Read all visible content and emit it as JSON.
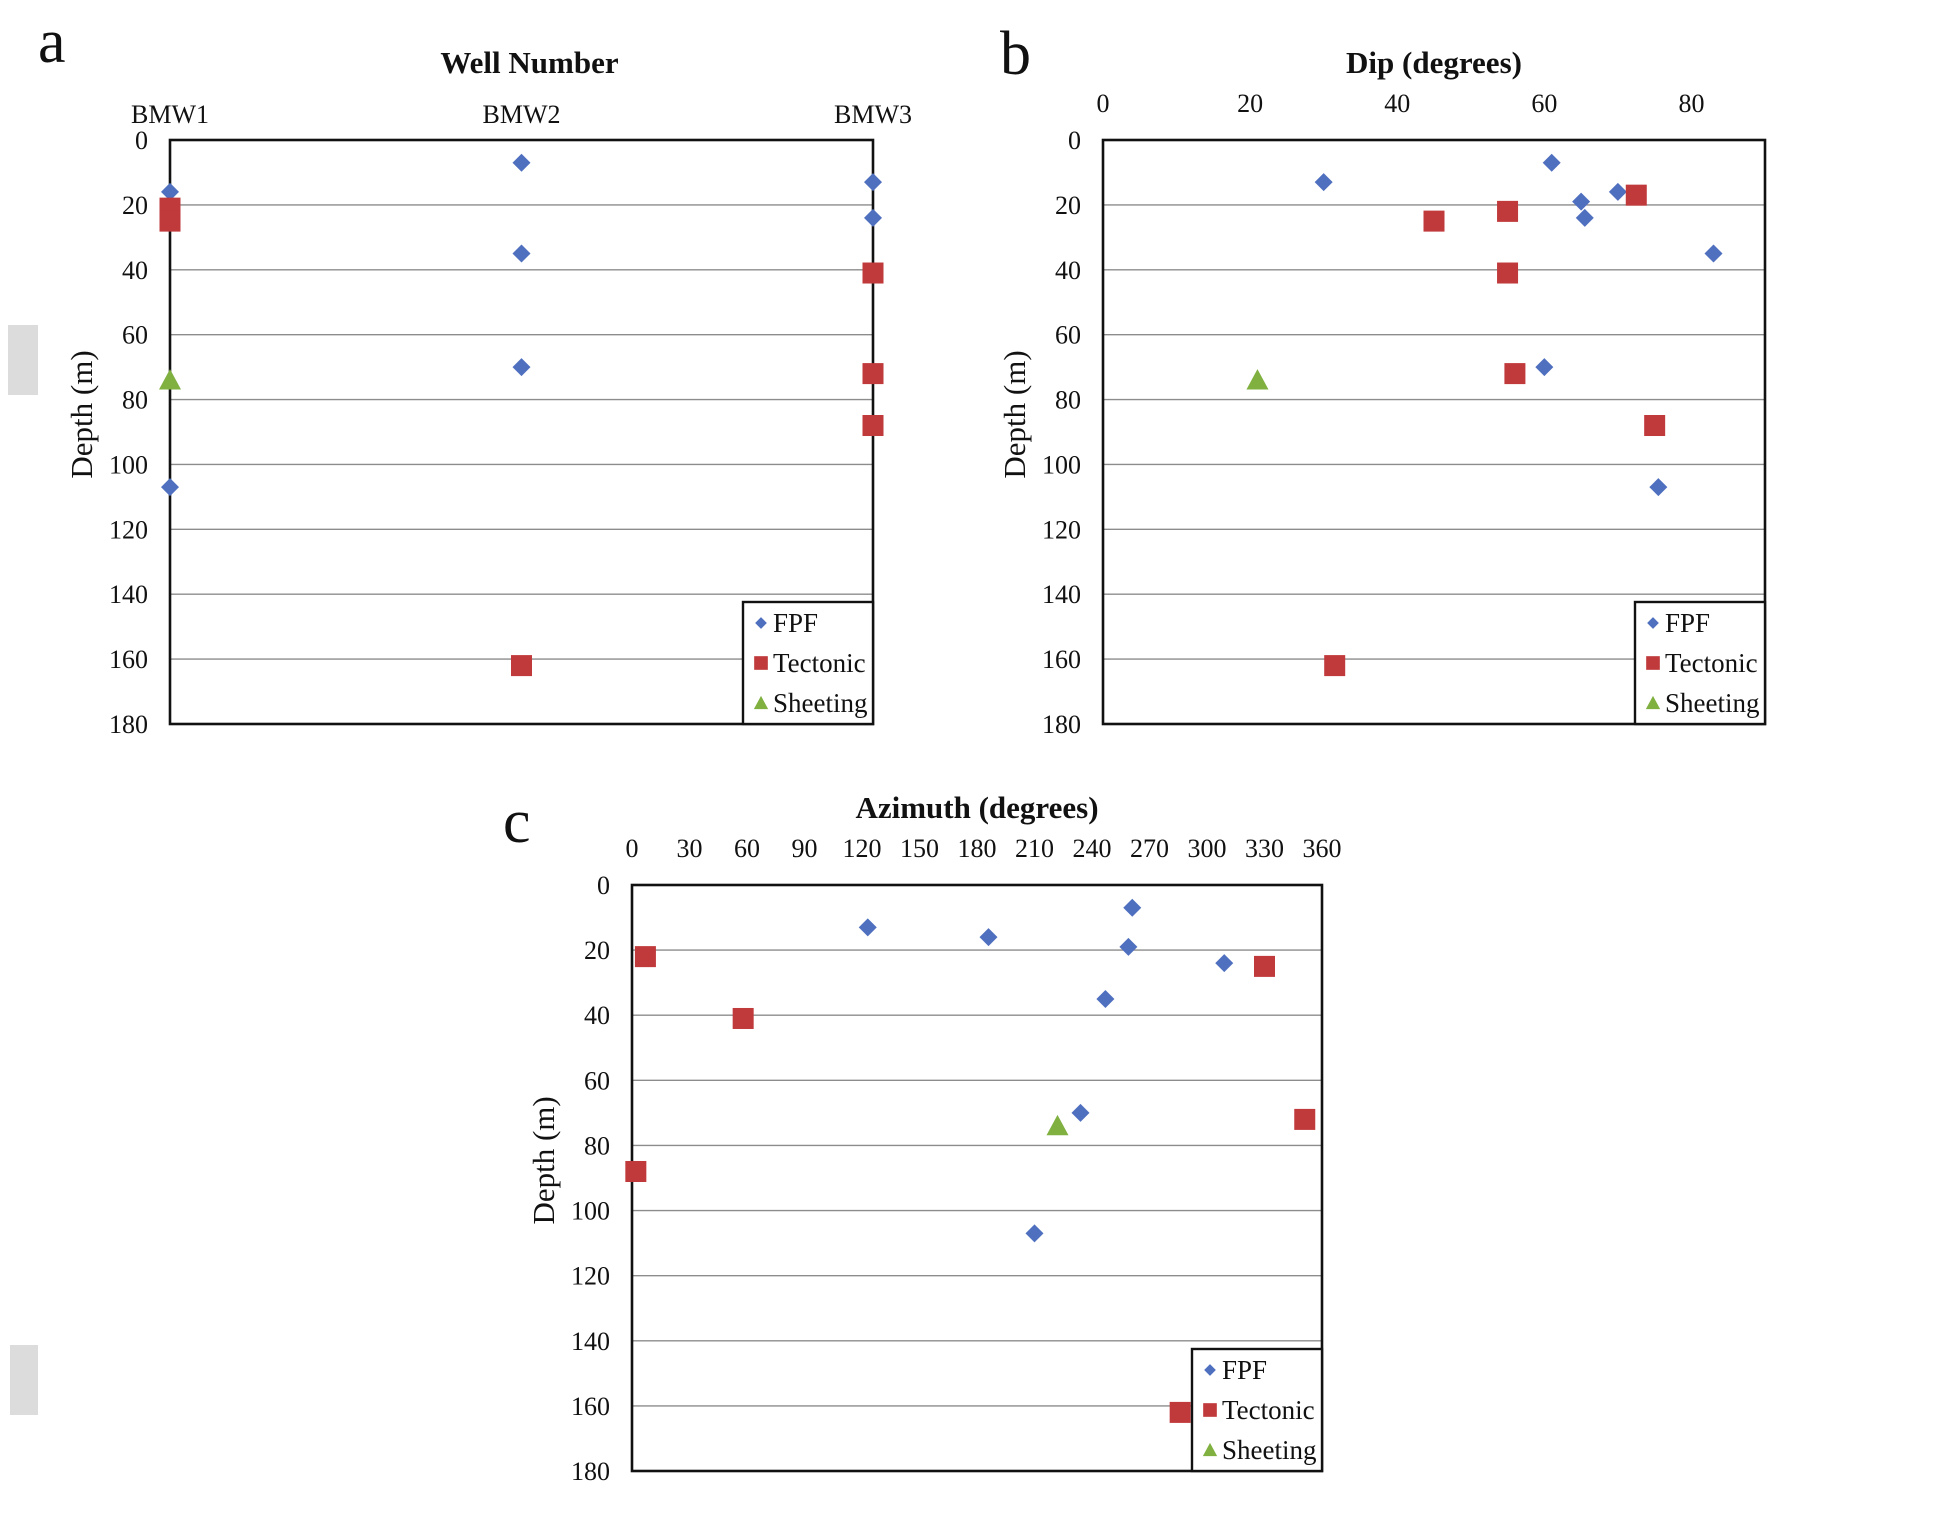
{
  "colors": {
    "FPF": "#4f6fbf",
    "Tectonic": "#c0393b",
    "Sheeting": "#7fb040"
  },
  "chart_data": [
    {
      "panel": "a",
      "type": "scatter",
      "title": "Well Number",
      "xlabel": "",
      "ylabel": "Depth (m)",
      "x_type": "category",
      "categories": [
        "BMW1",
        "BMW2",
        "BMW3"
      ],
      "ylim": [
        0,
        180
      ],
      "y_ticks": [
        0,
        20,
        40,
        60,
        80,
        100,
        120,
        140,
        160,
        180
      ],
      "y_inverted": true,
      "x_axis_position": "top",
      "grid": "horizontal",
      "legend": "bottom-right",
      "series": [
        {
          "name": "FPF",
          "marker": "diamond",
          "points": [
            {
              "x": "BMW1",
              "y": 16
            },
            {
              "x": "BMW1",
              "y": 107
            },
            {
              "x": "BMW2",
              "y": 7
            },
            {
              "x": "BMW2",
              "y": 35
            },
            {
              "x": "BMW2",
              "y": 70
            },
            {
              "x": "BMW3",
              "y": 13
            },
            {
              "x": "BMW3",
              "y": 24
            }
          ]
        },
        {
          "name": "Tectonic",
          "marker": "square",
          "points": [
            {
              "x": "BMW1",
              "y": 21
            },
            {
              "x": "BMW1",
              "y": 25
            },
            {
              "x": "BMW2",
              "y": 162
            },
            {
              "x": "BMW3",
              "y": 41
            },
            {
              "x": "BMW3",
              "y": 72
            },
            {
              "x": "BMW3",
              "y": 88
            }
          ]
        },
        {
          "name": "Sheeting",
          "marker": "triangle",
          "points": [
            {
              "x": "BMW1",
              "y": 74
            }
          ]
        }
      ]
    },
    {
      "panel": "b",
      "type": "scatter",
      "title": "Dip (degrees)",
      "xlabel": "",
      "ylabel": "Depth (m)",
      "xlim": [
        0,
        90
      ],
      "x_ticks": [
        0,
        20,
        40,
        60,
        80
      ],
      "ylim": [
        0,
        180
      ],
      "y_ticks": [
        0,
        20,
        40,
        60,
        80,
        100,
        120,
        140,
        160,
        180
      ],
      "y_inverted": true,
      "x_axis_position": "top",
      "grid": "horizontal",
      "legend": "bottom-right",
      "series": [
        {
          "name": "FPF",
          "marker": "diamond",
          "points": [
            {
              "x": 30,
              "y": 13
            },
            {
              "x": 61,
              "y": 7
            },
            {
              "x": 65,
              "y": 19
            },
            {
              "x": 65.5,
              "y": 24
            },
            {
              "x": 70,
              "y": 16
            },
            {
              "x": 83,
              "y": 35
            },
            {
              "x": 60,
              "y": 70
            },
            {
              "x": 75.5,
              "y": 107
            }
          ]
        },
        {
          "name": "Tectonic",
          "marker": "square",
          "points": [
            {
              "x": 45,
              "y": 25
            },
            {
              "x": 55,
              "y": 22
            },
            {
              "x": 72.5,
              "y": 17
            },
            {
              "x": 55,
              "y": 41
            },
            {
              "x": 56,
              "y": 72
            },
            {
              "x": 75,
              "y": 88
            },
            {
              "x": 31.5,
              "y": 162
            }
          ]
        },
        {
          "name": "Sheeting",
          "marker": "triangle",
          "points": [
            {
              "x": 21,
              "y": 74
            }
          ]
        }
      ]
    },
    {
      "panel": "c",
      "type": "scatter",
      "title": "Azimuth (degrees)",
      "xlabel": "",
      "ylabel": "Depth (m)",
      "xlim": [
        0,
        360
      ],
      "x_ticks": [
        0,
        30,
        60,
        90,
        120,
        150,
        180,
        210,
        240,
        270,
        300,
        330,
        360
      ],
      "ylim": [
        0,
        180
      ],
      "y_ticks": [
        0,
        20,
        40,
        60,
        80,
        100,
        120,
        140,
        160,
        180
      ],
      "y_inverted": true,
      "x_axis_position": "top",
      "grid": "horizontal",
      "legend": "bottom-right",
      "series": [
        {
          "name": "FPF",
          "marker": "diamond",
          "points": [
            {
              "x": 123,
              "y": 13
            },
            {
              "x": 186,
              "y": 16
            },
            {
              "x": 261,
              "y": 7
            },
            {
              "x": 259,
              "y": 19
            },
            {
              "x": 309,
              "y": 24
            },
            {
              "x": 247,
              "y": 35
            },
            {
              "x": 234,
              "y": 70
            },
            {
              "x": 210,
              "y": 107
            }
          ]
        },
        {
          "name": "Tectonic",
          "marker": "square",
          "points": [
            {
              "x": 7,
              "y": 22
            },
            {
              "x": 58,
              "y": 41
            },
            {
              "x": 330,
              "y": 25
            },
            {
              "x": 351,
              "y": 72
            },
            {
              "x": 2,
              "y": 88
            },
            {
              "x": 286,
              "y": 162
            }
          ]
        },
        {
          "name": "Sheeting",
          "marker": "triangle",
          "points": [
            {
              "x": 222,
              "y": 74
            }
          ]
        }
      ]
    }
  ]
}
